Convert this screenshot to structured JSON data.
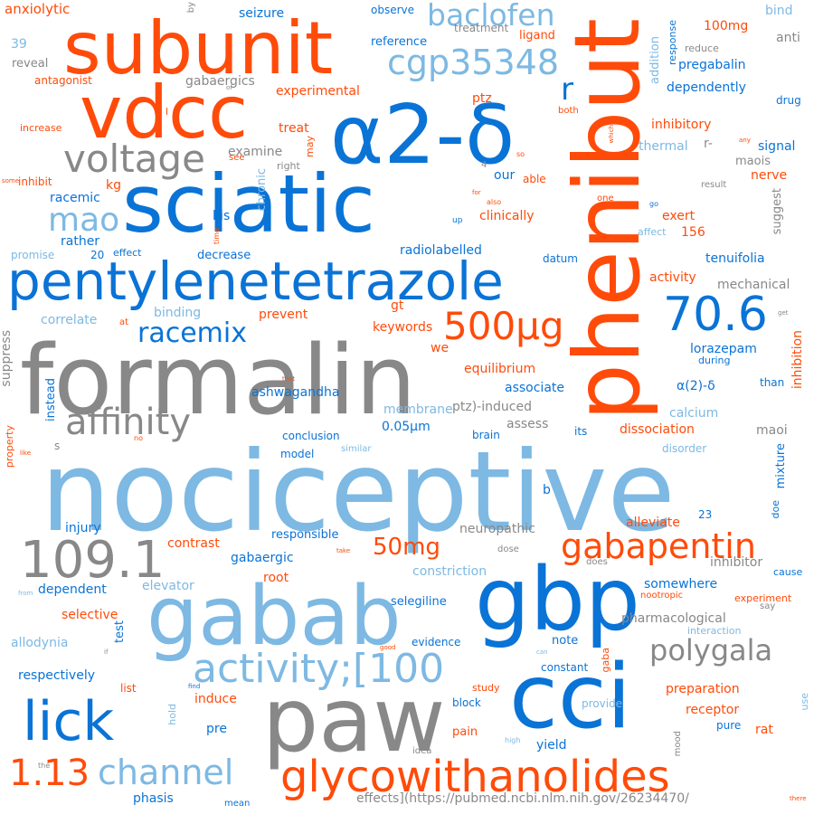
{
  "palette": {
    "orange": "#ff4b0a",
    "blue": "#0a73d6",
    "light_blue": "#7db9e3",
    "gray": "#888888"
  },
  "words": {
    "nociceptive": "nociceptive",
    "formalin": "formalin",
    "phenibut": "phenibut",
    "a2d": "α2-δ",
    "sciatic": "sciatic",
    "subunit": "subunit",
    "vdcc": "vdcc",
    "gabab": "gabab",
    "paw": "paw",
    "gbp": "gbp",
    "cci": "cci",
    "pentylenetetrazole": "pentylenetetrazole",
    "glycowithanolides": "glycowithanolides",
    "baclofen": "baclofen",
    "cgp35348": "cgp35348",
    "voltage": "voltage",
    "mao": "mao",
    "affinity": "affinity",
    "racemix": "racemix",
    "v500ug": "500μg",
    "v70_6": "70.6",
    "v109_1": "109.1",
    "gabapentin": "gabapentin",
    "activity100": "activity;[100",
    "lick": "lick",
    "channel": "channel",
    "v1_13": "1.13",
    "polygala": "polygala",
    "v50mg": "50mg",
    "r": "r",
    "anxiolytic": "anxiolytic",
    "antagonist": "antagonist",
    "v39": "39",
    "reveal": "reveal",
    "gabaergics": "gabaergics",
    "experimental": "experimental",
    "increase": "increase",
    "treat": "treat",
    "examine": "examine",
    "see": "see",
    "right": "right",
    "may": "may",
    "chronic": "chronic",
    "inhibit": "inhibit",
    "some": "some",
    "kg": "kg",
    "racemic": "racemic",
    "kis": "kis",
    "rather": "rather",
    "promise": "promise",
    "v20": "20",
    "effect": "effect",
    "time": "time",
    "decrease": "decrease",
    "radiolabelled": "radiolabelled",
    "clinically": "clinically",
    "datum": "datum",
    "our": "our",
    "able": "able",
    "for": "for",
    "also": "also",
    "up": "up",
    "v4": "4",
    "so": "so",
    "observe": "observe",
    "treatment": "treatment",
    "reference": "reference",
    "ligand": "ligand",
    "seizure": "seizure",
    "ptz": "ptz",
    "both": "both",
    "which": "which",
    "one": "one",
    "go": "go",
    "affect": "affect",
    "exert": "exert",
    "v156": "156",
    "addition": "addition",
    "response": "response",
    "v100mg": "100mg",
    "reduce": "reduce",
    "pregabalin": "pregabalin",
    "dependently": "dependently",
    "drug": "drug",
    "bind": "bind",
    "anti": "anti",
    "inhibitory": "inhibitory",
    "thermal": "thermal",
    "r_dash": "r-",
    "any": "any",
    "signal": "signal",
    "maois": "maois",
    "nerve": "nerve",
    "result": "result",
    "suggest": "suggest",
    "tenuifolia": "tenuifolia",
    "mechanical": "mechanical",
    "activity": "activity",
    "get": "get",
    "lorazepam": "lorazepam",
    "during": "during",
    "a2d_paren": "α(2)-δ",
    "than": "than",
    "inhibition": "inhibition",
    "calcium": "calcium",
    "maoi": "maoi",
    "disorder": "disorder",
    "mixture": "mixture",
    "doe": "doe",
    "v23": "23",
    "suppress": "suppress",
    "correlate": "correlate",
    "at": "at",
    "binding": "binding",
    "prevent": "prevent",
    "keywords": "keywords",
    "gt": "gt",
    "we": "we",
    "that": "that",
    "instead": "instead",
    "equilibrium": "equilibrium",
    "associate": "associate",
    "ashwagandha": "ashwagandha",
    "membrane": "membrane",
    "ptz_induced": "ptz)-induced",
    "assess": "assess",
    "dissociation": "dissociation",
    "v0_05um": "0.05μm",
    "its": "its",
    "no": "no",
    "conclusion": "conclusion",
    "brain": "brain",
    "like": "like",
    "property": "property",
    "s": "s",
    "model": "model",
    "similar": "similar",
    "b": "b",
    "injury": "injury",
    "neuropathic": "neuropathic",
    "responsible": "responsible",
    "alleviate": "alleviate",
    "take": "take",
    "contrast": "contrast",
    "dose": "dose",
    "does": "does",
    "constriction": "constriction",
    "inhibitor": "inhibitor",
    "cause": "cause",
    "gabaergic": "gabaergic",
    "root": "root",
    "elevator": "elevator",
    "dependent": "dependent",
    "from": "from",
    "somewhere": "somewhere",
    "nootropic": "nootropic",
    "experiment": "experiment",
    "say": "say",
    "selegiline": "selegiline",
    "selective": "selective",
    "test": "test",
    "pharmacological": "pharmacological",
    "interaction": "interaction",
    "allodynia": "allodynia",
    "if": "if",
    "good": "good",
    "evidence": "evidence",
    "gaba": "gaba",
    "can": "can",
    "note": "note",
    "respectively": "respectively",
    "constant": "constant",
    "list": "list",
    "find": "find",
    "study": "study",
    "preparation": "preparation",
    "use": "use",
    "hold": "hold",
    "induce": "induce",
    "block": "block",
    "provide": "provide",
    "receptor": "receptor",
    "pre": "pre",
    "pain": "pain",
    "high": "high",
    "mood": "mood",
    "pure": "pure",
    "rat": "rat",
    "yield": "yield",
    "the": "the",
    "idea": "idea",
    "phasis": "phasis",
    "mean": "mean",
    "url": "effects](https://pubmed.ncbi.nlm.nih.gov/26234470/",
    "there": "there",
    "by": "by",
    "of": "of",
    "l": "l"
  }
}
